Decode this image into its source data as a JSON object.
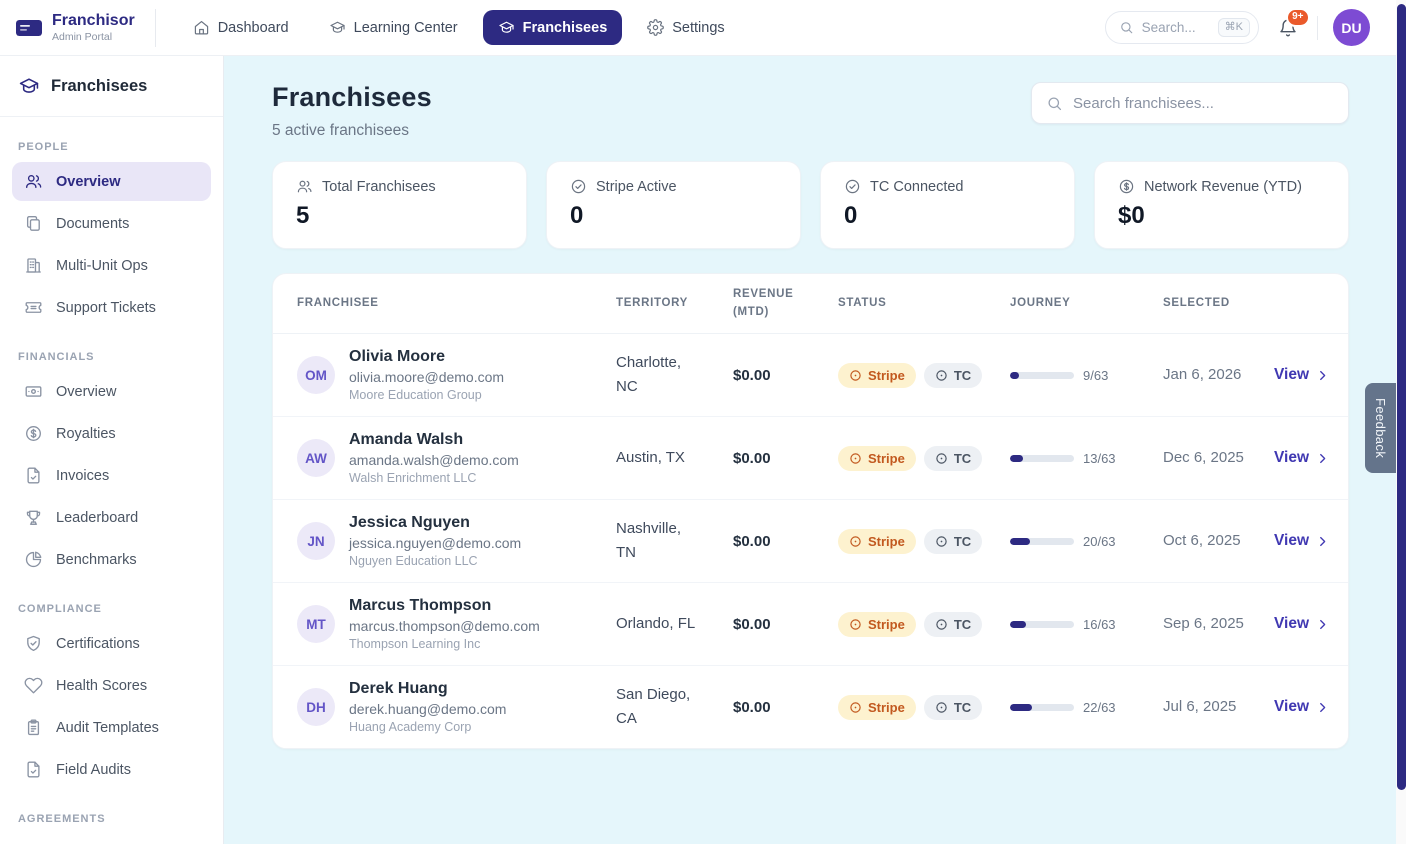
{
  "topbar": {
    "brand": {
      "name": "Franchisor",
      "subtitle": "Admin Portal"
    },
    "nav": [
      {
        "label": "Dashboard",
        "icon": "home-icon",
        "active": false
      },
      {
        "label": "Learning Center",
        "icon": "graduation-cap-icon",
        "active": false
      },
      {
        "label": "Franchisees",
        "icon": "graduation-cap-icon",
        "active": true
      },
      {
        "label": "Settings",
        "icon": "gear-icon",
        "active": false
      }
    ],
    "search": {
      "placeholder": "Search...",
      "shortcut": "⌘K",
      "value": ""
    },
    "notifications_badge": "9+",
    "avatar_initials": "DU"
  },
  "sidebar": {
    "title": "Franchisees",
    "sections": [
      {
        "label": "PEOPLE",
        "items": [
          {
            "label": "Overview",
            "icon": "users-icon",
            "active": true
          },
          {
            "label": "Documents",
            "icon": "document-icon",
            "active": false
          },
          {
            "label": "Multi-Unit Ops",
            "icon": "building-icon",
            "active": false
          },
          {
            "label": "Support Tickets",
            "icon": "ticket-icon",
            "active": false
          }
        ]
      },
      {
        "label": "FINANCIALS",
        "items": [
          {
            "label": "Overview",
            "icon": "banknote-icon",
            "active": false
          },
          {
            "label": "Royalties",
            "icon": "dollar-circle-icon",
            "active": false
          },
          {
            "label": "Invoices",
            "icon": "file-check-icon",
            "active": false
          },
          {
            "label": "Leaderboard",
            "icon": "trophy-icon",
            "active": false
          },
          {
            "label": "Benchmarks",
            "icon": "pie-chart-icon",
            "active": false
          }
        ]
      },
      {
        "label": "COMPLIANCE",
        "items": [
          {
            "label": "Certifications",
            "icon": "shield-check-icon",
            "active": false
          },
          {
            "label": "Health Scores",
            "icon": "heart-icon",
            "active": false
          },
          {
            "label": "Audit Templates",
            "icon": "clipboard-icon",
            "active": false
          },
          {
            "label": "Field Audits",
            "icon": "file-check-icon",
            "active": false
          }
        ]
      },
      {
        "label": "AGREEMENTS",
        "items": []
      }
    ]
  },
  "main": {
    "title": "Franchisees",
    "subtitle": "5 active franchisees",
    "search_placeholder": "Search franchisees...",
    "stats": [
      {
        "label": "Total Franchisees",
        "value": "5",
        "icon": "users-icon"
      },
      {
        "label": "Stripe Active",
        "value": "0",
        "icon": "check-circle-icon"
      },
      {
        "label": "TC Connected",
        "value": "0",
        "icon": "check-circle-icon"
      },
      {
        "label": "Network Revenue (YTD)",
        "value": "$0",
        "icon": "dollar-circle-icon"
      }
    ],
    "table": {
      "columns": [
        "FRANCHISEE",
        "TERRITORY",
        "REVENUE (MTD)",
        "STATUS",
        "JOURNEY",
        "SELECTED"
      ],
      "view_label": "View",
      "rows": [
        {
          "initials": "OM",
          "name": "Olivia Moore",
          "email": "olivia.moore@demo.com",
          "company": "Moore Education Group",
          "territory": "Charlotte, NC",
          "revenue": "$0.00",
          "badges": [
            {
              "label": "Stripe",
              "type": "stripe"
            },
            {
              "label": "TC",
              "type": "tc"
            }
          ],
          "journey": {
            "done": 9,
            "total": 63,
            "label": "9/63"
          },
          "selected": "Jan 6, 2026"
        },
        {
          "initials": "AW",
          "name": "Amanda Walsh",
          "email": "amanda.walsh@demo.com",
          "company": "Walsh Enrichment LLC",
          "territory": "Austin, TX",
          "revenue": "$0.00",
          "badges": [
            {
              "label": "Stripe",
              "type": "stripe"
            },
            {
              "label": "TC",
              "type": "tc"
            }
          ],
          "journey": {
            "done": 13,
            "total": 63,
            "label": "13/63"
          },
          "selected": "Dec 6, 2025"
        },
        {
          "initials": "JN",
          "name": "Jessica Nguyen",
          "email": "jessica.nguyen@demo.com",
          "company": "Nguyen Education LLC",
          "territory": "Nashville, TN",
          "revenue": "$0.00",
          "badges": [
            {
              "label": "Stripe",
              "type": "stripe"
            },
            {
              "label": "TC",
              "type": "tc"
            }
          ],
          "journey": {
            "done": 20,
            "total": 63,
            "label": "20/63"
          },
          "selected": "Oct 6, 2025"
        },
        {
          "initials": "MT",
          "name": "Marcus Thompson",
          "email": "marcus.thompson@demo.com",
          "company": "Thompson Learning Inc",
          "territory": "Orlando, FL",
          "revenue": "$0.00",
          "badges": [
            {
              "label": "Stripe",
              "type": "stripe"
            },
            {
              "label": "TC",
              "type": "tc"
            }
          ],
          "journey": {
            "done": 16,
            "total": 63,
            "label": "16/63"
          },
          "selected": "Sep 6, 2025"
        },
        {
          "initials": "DH",
          "name": "Derek Huang",
          "email": "derek.huang@demo.com",
          "company": "Huang Academy Corp",
          "territory": "San Diego, CA",
          "revenue": "$0.00",
          "badges": [
            {
              "label": "Stripe",
              "type": "stripe"
            },
            {
              "label": "TC",
              "type": "tc"
            }
          ],
          "journey": {
            "done": 22,
            "total": 63,
            "label": "22/63"
          },
          "selected": "Jul 6, 2025"
        }
      ]
    }
  },
  "feedback_label": "Feedback",
  "colors": {
    "accent": "#2d2a82",
    "page_bg": "#e5f6fb",
    "link": "#4038b2",
    "stripe_badge_bg": "#fdf2cf",
    "stripe_badge_text": "#c2591f",
    "tc_badge_bg": "#edf0f4",
    "tc_badge_text": "#4b5563",
    "notification_badge": "#ea5a2b",
    "avatar_bg": "#7d4bd3",
    "feedback_tab": "#64748b",
    "active_sidebar_item": "#e9e6f7"
  }
}
